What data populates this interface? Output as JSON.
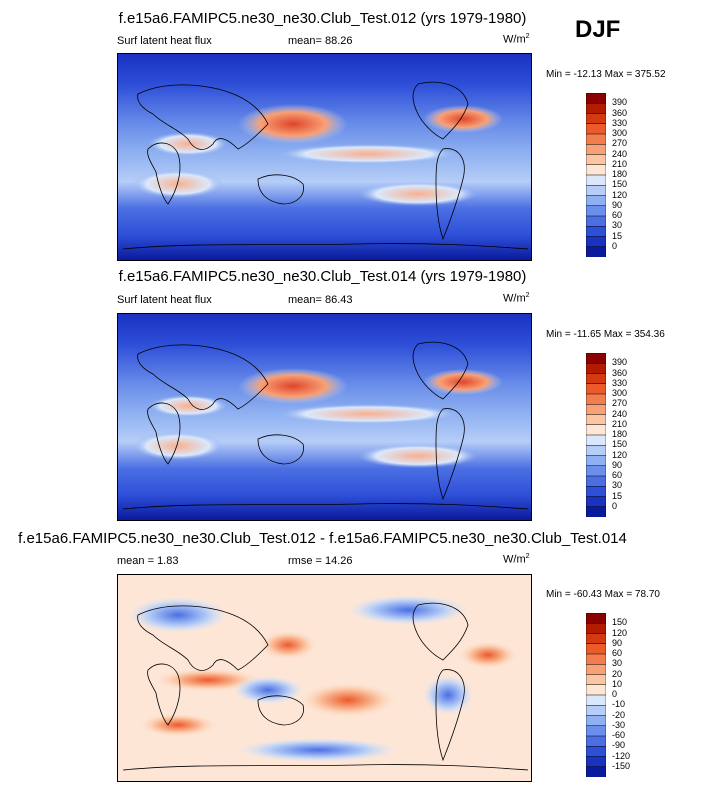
{
  "season": "DJF",
  "panels": [
    {
      "title": "f.e15a6.FAMIPC5.ne30_ne30.Club_Test.012 (yrs 1979-1980)",
      "variable": "Surf latent heat flux",
      "stat_label": "mean=",
      "stat_value": "88.26",
      "units_base": "W/m",
      "units_exp": "2",
      "minmax": "Min = -12.13 Max = 375.52",
      "colorbar_levels": [
        "390",
        "360",
        "330",
        "300",
        "270",
        "240",
        "210",
        "180",
        "150",
        "120",
        "90",
        "60",
        "30",
        "15",
        "0"
      ],
      "colorbar_colors": [
        "#8b0000",
        "#b31b00",
        "#d43a10",
        "#ed5a2a",
        "#f47d4e",
        "#f8a076",
        "#fbc6a4",
        "#fde6d6",
        "#dbe8fb",
        "#b5cdf7",
        "#8fb0f1",
        "#6b8fea",
        "#4b6fe3",
        "#2e4fd8",
        "#1a32c2",
        "#0a1a9c"
      ],
      "mean_value": 88.26
    },
    {
      "title": "f.e15a6.FAMIPC5.ne30_ne30.Club_Test.014 (yrs 1979-1980)",
      "variable": "Surf latent heat flux",
      "stat_label": "mean=",
      "stat_value": "86.43",
      "units_base": "W/m",
      "units_exp": "2",
      "minmax": "Min = -11.65 Max = 354.36",
      "colorbar_levels": [
        "390",
        "360",
        "330",
        "300",
        "270",
        "240",
        "210",
        "180",
        "150",
        "120",
        "90",
        "60",
        "30",
        "15",
        "0"
      ],
      "colorbar_colors": [
        "#8b0000",
        "#b31b00",
        "#d43a10",
        "#ed5a2a",
        "#f47d4e",
        "#f8a076",
        "#fbc6a4",
        "#fde6d6",
        "#dbe8fb",
        "#b5cdf7",
        "#8fb0f1",
        "#6b8fea",
        "#4b6fe3",
        "#2e4fd8",
        "#1a32c2",
        "#0a1a9c"
      ],
      "mean_value": 86.43
    },
    {
      "title": "f.e15a6.FAMIPC5.ne30_ne30.Club_Test.012 - f.e15a6.FAMIPC5.ne30_ne30.Club_Test.014",
      "variable": "",
      "stat_label": "mean =",
      "stat_value": "1.83",
      "stat2_label": "rmse =",
      "stat2_value": "14.26",
      "units_base": "W/m",
      "units_exp": "2",
      "minmax": "Min = -60.43 Max = 78.70",
      "colorbar_levels": [
        "150",
        "120",
        "90",
        "60",
        "30",
        "20",
        "10",
        "0",
        "-10",
        "-20",
        "-30",
        "-60",
        "-90",
        "-120",
        "-150"
      ],
      "colorbar_colors": [
        "#8b0000",
        "#b31b00",
        "#d43a10",
        "#ed5a2a",
        "#f47d4e",
        "#f8a076",
        "#fbc6a4",
        "#fde6d6",
        "#dbe8fb",
        "#b5cdf7",
        "#8fb0f1",
        "#6b8fea",
        "#4b6fe3",
        "#2e4fd8",
        "#1a32c2",
        "#0a1a9c"
      ],
      "mean_value": 1.83
    }
  ],
  "chart_data": [
    {
      "type": "heatmap",
      "title": "f.e15a6.FAMIPC5.ne30_ne30.Club_Test.012 (yrs 1979-1980)",
      "subtitle": "Surf latent heat flux",
      "mean": 88.26,
      "units": "W/m2",
      "min": -12.13,
      "max": 375.52,
      "levels": [
        0,
        15,
        30,
        60,
        90,
        120,
        150,
        180,
        210,
        240,
        270,
        300,
        330,
        360,
        390
      ]
    },
    {
      "type": "heatmap",
      "title": "f.e15a6.FAMIPC5.ne30_ne30.Club_Test.014 (yrs 1979-1980)",
      "subtitle": "Surf latent heat flux",
      "mean": 86.43,
      "units": "W/m2",
      "min": -11.65,
      "max": 354.36,
      "levels": [
        0,
        15,
        30,
        60,
        90,
        120,
        150,
        180,
        210,
        240,
        270,
        300,
        330,
        360,
        390
      ]
    },
    {
      "type": "heatmap",
      "title": "f.e15a6.FAMIPC5.ne30_ne30.Club_Test.012 - f.e15a6.FAMIPC5.ne30_ne30.Club_Test.014",
      "mean": 1.83,
      "rmse": 14.26,
      "units": "W/m2",
      "min": -60.43,
      "max": 78.7,
      "levels": [
        -150,
        -120,
        -90,
        -60,
        -30,
        -20,
        -10,
        0,
        10,
        20,
        30,
        60,
        90,
        120,
        150
      ]
    }
  ]
}
